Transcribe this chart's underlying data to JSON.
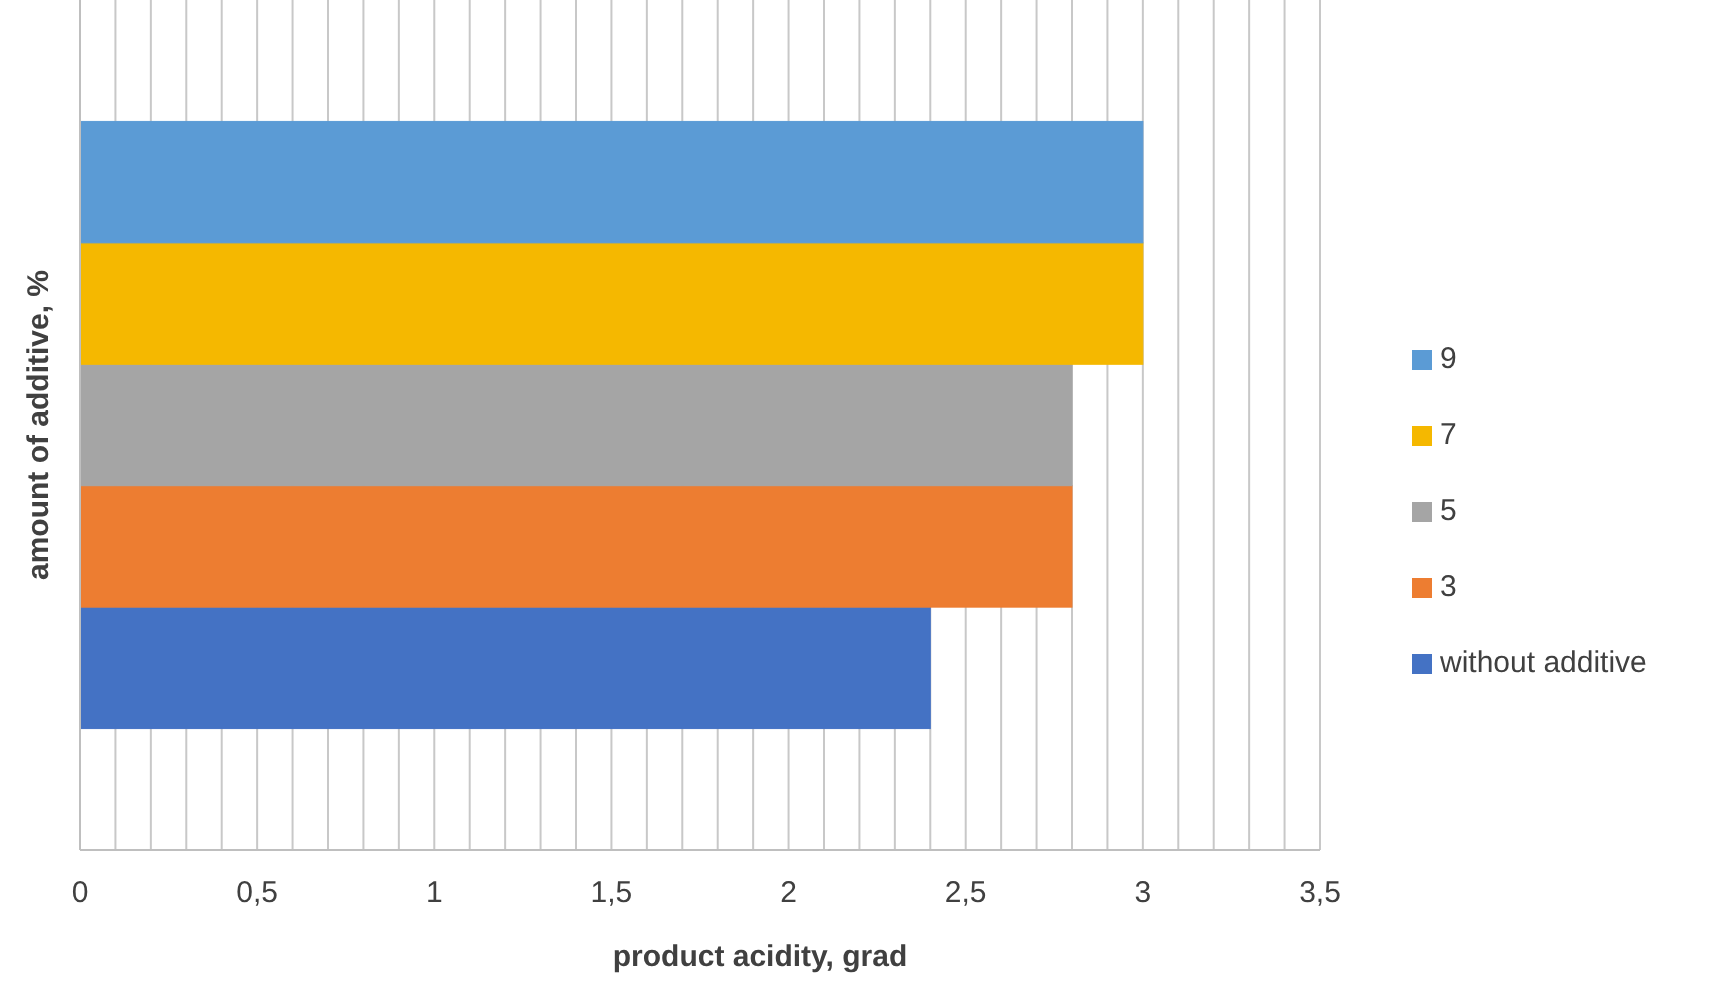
{
  "chart_data": {
    "type": "bar",
    "orientation": "horizontal",
    "xlabel": "product acidity, grad",
    "ylabel": "amount of additive, %",
    "categories": [
      null
    ],
    "series": [
      {
        "name": "without additive",
        "color": "#4472c4",
        "values": [
          2.4
        ]
      },
      {
        "name": "3",
        "color": "#ed7d31",
        "values": [
          2.8
        ]
      },
      {
        "name": "5",
        "color": "#a5a5a5",
        "values": [
          2.8
        ]
      },
      {
        "name": "7",
        "color": "#f5b800",
        "values": [
          3.0
        ]
      },
      {
        "name": "9",
        "color": "#5b9bd5",
        "values": [
          3.0
        ]
      }
    ],
    "xlim": [
      0,
      3.5
    ],
    "xticks": [
      0,
      {
        "value": 0.1,
        "label": null
      },
      {
        "value": 0.2,
        "label": null
      },
      {
        "value": 0.3,
        "label": null
      },
      {
        "value": 0.4,
        "label": null
      },
      {
        "value": 0.5,
        "label": "0,5"
      },
      {
        "value": 0.6,
        "label": null
      },
      {
        "value": 0.7,
        "label": null
      },
      {
        "value": 0.8,
        "label": null
      },
      {
        "value": 0.9,
        "label": null
      },
      1,
      {
        "value": 1.1,
        "label": null
      },
      {
        "value": 1.2,
        "label": null
      },
      {
        "value": 1.3,
        "label": null
      },
      {
        "value": 1.4,
        "label": null
      },
      {
        "value": 1.5,
        "label": "1,5"
      },
      {
        "value": 1.6,
        "label": null
      },
      {
        "value": 1.7,
        "label": null
      },
      {
        "value": 1.8,
        "label": null
      },
      {
        "value": 1.9,
        "label": null
      },
      2,
      {
        "value": 2.1,
        "label": null
      },
      {
        "value": 2.2,
        "label": null
      },
      {
        "value": 2.3,
        "label": null
      },
      {
        "value": 2.4,
        "label": null
      },
      {
        "value": 2.5,
        "label": "2,5"
      },
      {
        "value": 2.6,
        "label": null
      },
      {
        "value": 2.7,
        "label": null
      },
      {
        "value": 2.8,
        "label": null
      },
      {
        "value": 2.9,
        "label": null
      },
      3,
      {
        "value": 3.1,
        "label": null
      },
      {
        "value": 3.2,
        "label": null
      },
      {
        "value": 3.3,
        "label": null
      },
      {
        "value": 3.4,
        "label": null
      },
      {
        "value": 3.5,
        "label": "3,5"
      }
    ],
    "grid": "x",
    "legend": "right"
  }
}
